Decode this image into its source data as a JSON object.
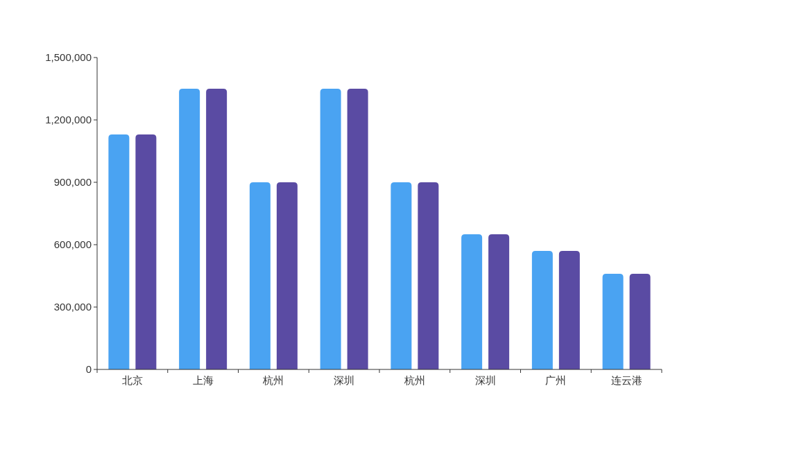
{
  "chart_data": {
    "type": "bar",
    "categories": [
      "北京",
      "上海",
      "杭州",
      "深圳",
      "杭州",
      "深圳",
      "广州",
      "连云港"
    ],
    "series": [
      {
        "color": "#4aa3f2",
        "values": [
          1130000,
          1350000,
          900000,
          1350000,
          900000,
          650000,
          570000,
          460000
        ]
      },
      {
        "color": "#5a4ba3",
        "values": [
          1130000,
          1350000,
          900000,
          1350000,
          900000,
          650000,
          570000,
          460000
        ]
      }
    ],
    "ylim": [
      0,
      1500000
    ],
    "yticks": [
      {
        "value": 0,
        "label": "0"
      },
      {
        "value": 300000,
        "label": "300,000"
      },
      {
        "value": 600000,
        "label": "600,000"
      },
      {
        "value": 900000,
        "label": "900,000"
      },
      {
        "value": 1200000,
        "label": "1,200,000"
      },
      {
        "value": 1500000,
        "label": "1,500,000"
      }
    ],
    "grid": false
  }
}
